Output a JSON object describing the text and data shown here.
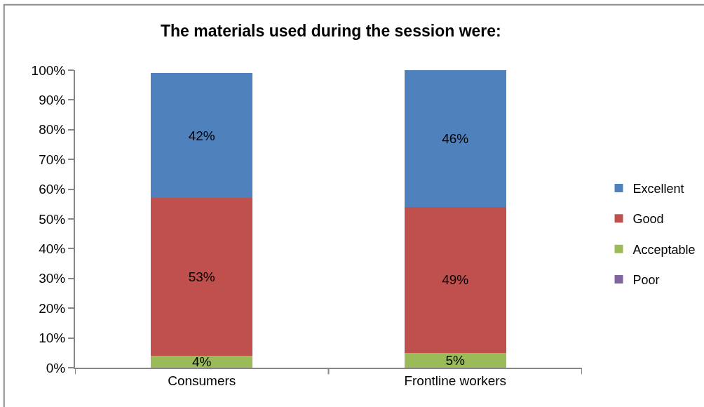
{
  "chart_data": {
    "type": "bar",
    "title": "The materials used during the session were:",
    "categories": [
      "Consumers",
      "Frontline workers"
    ],
    "stacked": true,
    "series": [
      {
        "name": "Poor",
        "color": "#8064a2",
        "values": [
          0,
          0
        ],
        "value_labels": [
          null,
          null
        ]
      },
      {
        "name": "Acceptable",
        "color": "#9bbb59",
        "values": [
          4,
          5
        ],
        "value_labels": [
          "4%",
          "5%"
        ]
      },
      {
        "name": "Good",
        "color": "#c0504d",
        "values": [
          53,
          49
        ],
        "value_labels": [
          "53%",
          "49%"
        ]
      },
      {
        "name": "Excellent",
        "color": "#4f81bd",
        "values": [
          42,
          46
        ],
        "value_labels": [
          "42%",
          "46%"
        ]
      }
    ],
    "ylim": [
      0,
      100
    ],
    "yticks": [
      {
        "value": 0,
        "label": "0%"
      },
      {
        "value": 10,
        "label": "10%"
      },
      {
        "value": 20,
        "label": "20%"
      },
      {
        "value": 30,
        "label": "30%"
      },
      {
        "value": 40,
        "label": "40%"
      },
      {
        "value": 50,
        "label": "50%"
      },
      {
        "value": 60,
        "label": "60%"
      },
      {
        "value": 70,
        "label": "70%"
      },
      {
        "value": 80,
        "label": "80%"
      },
      {
        "value": 90,
        "label": "90%"
      },
      {
        "value": 100,
        "label": "100%"
      }
    ],
    "grid": false,
    "legend": "right"
  }
}
